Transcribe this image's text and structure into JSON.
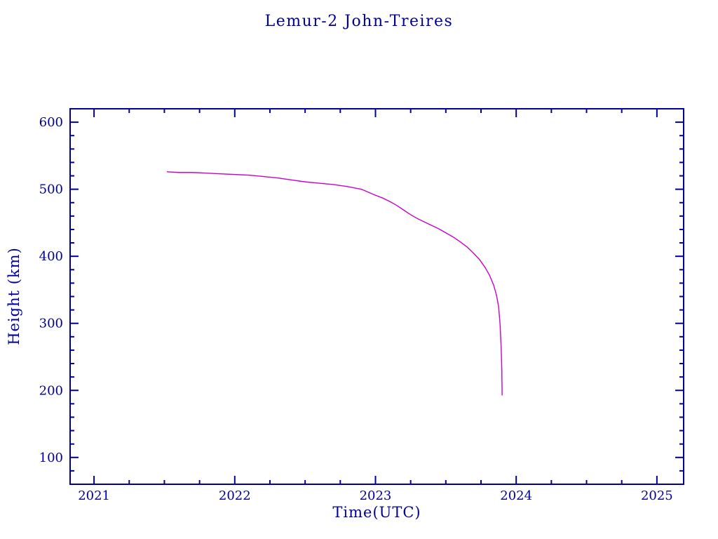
{
  "title": "Lemur-2 John-Treires",
  "colors": {
    "axis": "#000099",
    "text": "#000099",
    "curve": "#cc00cc",
    "background": "#ffffff"
  },
  "chart_data": {
    "type": "line",
    "title": "Lemur-2 John-Treires",
    "xlabel": "Time(UTC)",
    "ylabel": "Height (km)",
    "xlim": [
      2020.83,
      2025.19
    ],
    "ylim": [
      60,
      620
    ],
    "xticks": [
      2021,
      2022,
      2023,
      2024,
      2025
    ],
    "yticks": [
      100,
      200,
      300,
      400,
      500,
      600
    ],
    "x_minor_step": 0.25,
    "y_minor_step": 20,
    "grid": false,
    "legend": "none",
    "series": [
      {
        "name": "orbital-height",
        "color": "#cc00cc",
        "x": [
          2021.52,
          2021.6,
          2021.7,
          2021.8,
          2021.9,
          2022.0,
          2022.1,
          2022.2,
          2022.3,
          2022.4,
          2022.5,
          2022.6,
          2022.7,
          2022.8,
          2022.9,
          2023.0,
          2023.05,
          2023.1,
          2023.15,
          2023.2,
          2023.25,
          2023.3,
          2023.35,
          2023.4,
          2023.45,
          2023.5,
          2023.55,
          2023.6,
          2023.65,
          2023.7,
          2023.74,
          2023.78,
          2023.81,
          2023.84,
          2023.86,
          2023.875,
          2023.885,
          2023.893,
          2023.898,
          2023.9
        ],
        "y": [
          526,
          525,
          525,
          524,
          523,
          522,
          521,
          519,
          517,
          514,
          511,
          509,
          507,
          504,
          500,
          491,
          487,
          482,
          476,
          469,
          462,
          456,
          451,
          446,
          441,
          435,
          429,
          422,
          414,
          404,
          395,
          383,
          372,
          357,
          342,
          325,
          300,
          265,
          230,
          193
        ]
      }
    ]
  }
}
